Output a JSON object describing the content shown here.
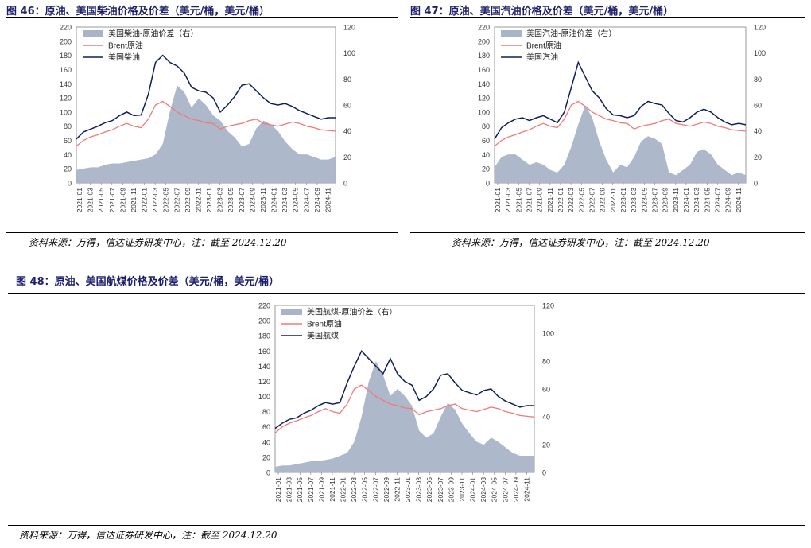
{
  "figures": [
    {
      "title": "图 46：原油、美国柴油价格及价差（美元/桶，美元/桶）",
      "source": "资料来源：万得，信达证券研发中心，注：截至 2024.12.20"
    },
    {
      "title": "图 47：原油、美国汽油价格及价差（美元/桶，美元/桶）",
      "source": "资料来源：万得，信达证券研发中心，注：截至 2024.12.20"
    },
    {
      "title": "图 48：原油、美国航煤价格及价差（美元/桶，美元/桶）",
      "source": "资料来源：万得，信达证券研发中心，注：截至 2024.12.20"
    }
  ],
  "colors": {
    "spread": "#aab4c8",
    "brent": "#f07a78",
    "product": "#0f1f5c",
    "title": "#1d1f6b"
  },
  "chart_data": [
    {
      "type": "line",
      "title": "",
      "xlabel": "",
      "ylabel": "",
      "x_ticks": [
        "2021-01",
        "2021-03",
        "2021-05",
        "2021-07",
        "2021-09",
        "2021-11",
        "2022-01",
        "2022-03",
        "2022-05",
        "2022-07",
        "2022-09",
        "2022-11",
        "2023-01",
        "2023-03",
        "2023-05",
        "2023-07",
        "2023-09",
        "2023-11",
        "2024-01",
        "2024-03",
        "2024-05",
        "2024-07",
        "2024-09",
        "2024-11"
      ],
      "ylim_left": [
        0,
        220
      ],
      "yticks_left": [
        0,
        20,
        40,
        60,
        80,
        100,
        120,
        140,
        160,
        180,
        200,
        220
      ],
      "ylim_right": [
        0,
        120
      ],
      "yticks_right": [
        0,
        20,
        40,
        60,
        80,
        100,
        120
      ],
      "legend_position": "top-left",
      "series": [
        {
          "name": "美国柴油-原油价差（右）",
          "axis": "right",
          "kind": "area",
          "values": [
            10,
            11,
            12,
            12,
            14,
            15,
            15,
            16,
            17,
            18,
            19,
            22,
            30,
            55,
            75,
            70,
            58,
            65,
            60,
            52,
            48,
            40,
            35,
            28,
            30,
            42,
            48,
            45,
            40,
            32,
            26,
            22,
            22,
            20,
            18,
            18,
            20
          ]
        },
        {
          "name": "Brent原油",
          "axis": "left",
          "kind": "line",
          "values": [
            52,
            60,
            65,
            68,
            72,
            75,
            80,
            84,
            80,
            78,
            90,
            110,
            115,
            108,
            100,
            95,
            90,
            88,
            85,
            84,
            76,
            80,
            82,
            84,
            88,
            90,
            84,
            82,
            80,
            83,
            86,
            84,
            80,
            78,
            75,
            74,
            73
          ]
        },
        {
          "name": "美国柴油",
          "axis": "left",
          "kind": "line",
          "values": [
            62,
            72,
            76,
            80,
            85,
            88,
            95,
            100,
            95,
            96,
            125,
            170,
            180,
            170,
            165,
            155,
            135,
            130,
            128,
            120,
            100,
            110,
            122,
            138,
            140,
            130,
            120,
            112,
            110,
            112,
            108,
            102,
            98,
            94,
            90,
            92,
            92
          ]
        }
      ]
    },
    {
      "type": "line",
      "title": "",
      "xlabel": "",
      "ylabel": "",
      "x_ticks": [
        "2021-01",
        "2021-03",
        "2021-05",
        "2021-07",
        "2021-09",
        "2021-11",
        "2022-01",
        "2022-03",
        "2022-05",
        "2022-07",
        "2022-09",
        "2022-11",
        "2023-01",
        "2023-03",
        "2023-05",
        "2023-07",
        "2023-09",
        "2023-11",
        "2024-01",
        "2024-03",
        "2024-05",
        "2024-07",
        "2024-09",
        "2024-11"
      ],
      "ylim_left": [
        0,
        220
      ],
      "yticks_left": [
        0,
        20,
        40,
        60,
        80,
        100,
        120,
        140,
        160,
        180,
        200,
        220
      ],
      "ylim_right": [
        0,
        120
      ],
      "yticks_right": [
        0,
        20,
        40,
        60,
        80,
        100,
        120
      ],
      "legend_position": "top-left",
      "series": [
        {
          "name": "美国汽油-原油价差（右）",
          "axis": "right",
          "kind": "area",
          "values": [
            12,
            20,
            22,
            22,
            18,
            14,
            16,
            14,
            10,
            8,
            14,
            28,
            45,
            60,
            50,
            32,
            18,
            8,
            14,
            12,
            20,
            32,
            36,
            34,
            30,
            8,
            6,
            10,
            14,
            24,
            26,
            22,
            14,
            10,
            6,
            8,
            6
          ]
        },
        {
          "name": "Brent原油",
          "axis": "left",
          "kind": "line",
          "values": [
            52,
            60,
            65,
            68,
            72,
            75,
            80,
            84,
            80,
            78,
            90,
            110,
            115,
            108,
            100,
            95,
            90,
            88,
            85,
            84,
            76,
            80,
            82,
            84,
            88,
            90,
            84,
            82,
            80,
            83,
            86,
            84,
            80,
            78,
            75,
            74,
            73
          ]
        },
        {
          "name": "美国汽油",
          "axis": "left",
          "kind": "line",
          "values": [
            62,
            78,
            85,
            90,
            92,
            88,
            92,
            95,
            90,
            85,
            100,
            135,
            170,
            150,
            130,
            120,
            105,
            96,
            95,
            92,
            95,
            108,
            115,
            112,
            110,
            98,
            88,
            86,
            92,
            100,
            104,
            100,
            92,
            86,
            82,
            84,
            82
          ]
        }
      ]
    },
    {
      "type": "line",
      "title": "",
      "xlabel": "",
      "ylabel": "",
      "x_ticks": [
        "2021-01",
        "2021-03",
        "2021-05",
        "2021-07",
        "2021-09",
        "2021-11",
        "2022-01",
        "2022-03",
        "2022-05",
        "2022-07",
        "2022-09",
        "2022-11",
        "2023-01",
        "2023-03",
        "2023-05",
        "2023-07",
        "2023-09",
        "2023-11",
        "2024-01",
        "2024-03",
        "2024-05",
        "2024-07",
        "2024-09",
        "2024-11"
      ],
      "ylim_left": [
        0,
        220
      ],
      "yticks_left": [
        0,
        20,
        40,
        60,
        80,
        100,
        120,
        140,
        160,
        180,
        200,
        220
      ],
      "ylim_right": [
        0,
        120
      ],
      "yticks_right": [
        0,
        20,
        40,
        60,
        80,
        100,
        120
      ],
      "legend_position": "top-left",
      "series": [
        {
          "name": "美国航煤-原油价差（右）",
          "axis": "right",
          "kind": "area",
          "values": [
            4,
            5,
            5,
            6,
            7,
            8,
            8,
            9,
            10,
            12,
            14,
            22,
            40,
            65,
            80,
            70,
            55,
            60,
            55,
            48,
            30,
            25,
            28,
            40,
            50,
            45,
            35,
            28,
            22,
            20,
            25,
            22,
            18,
            14,
            12,
            12,
            12
          ]
        },
        {
          "name": "Brent原油",
          "axis": "left",
          "kind": "line",
          "values": [
            52,
            60,
            65,
            68,
            72,
            75,
            80,
            84,
            80,
            78,
            90,
            110,
            115,
            108,
            100,
            95,
            90,
            88,
            85,
            84,
            76,
            80,
            82,
            84,
            88,
            90,
            84,
            82,
            80,
            83,
            86,
            84,
            80,
            78,
            75,
            74,
            73
          ]
        },
        {
          "name": "美国航煤",
          "axis": "left",
          "kind": "line",
          "values": [
            58,
            65,
            70,
            72,
            78,
            82,
            88,
            92,
            90,
            92,
            118,
            140,
            160,
            150,
            140,
            130,
            150,
            130,
            120,
            115,
            95,
            100,
            110,
            128,
            130,
            118,
            108,
            105,
            102,
            108,
            110,
            100,
            94,
            90,
            86,
            88,
            88
          ]
        }
      ]
    }
  ]
}
